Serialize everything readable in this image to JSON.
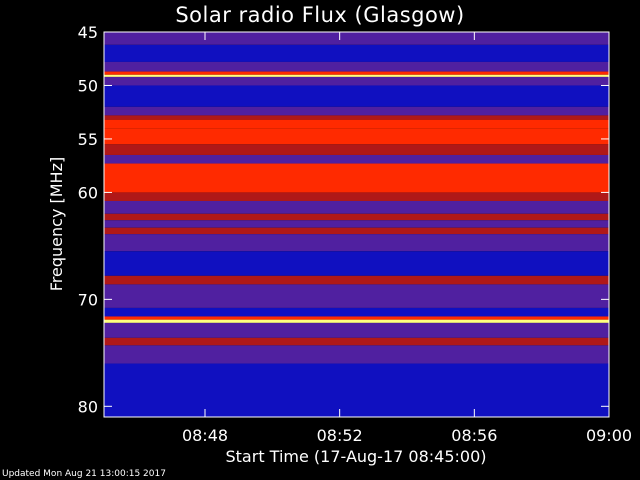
{
  "chart_data": {
    "type": "heatmap",
    "title": "Solar radio Flux (Glasgow)",
    "xlabel": "Start Time (17-Aug-17 08:45:00)",
    "ylabel": "Frequency [MHz]",
    "x_range": [
      "08:45",
      "09:00"
    ],
    "x_ticks": [
      "08:48",
      "08:52",
      "08:56",
      "09:00"
    ],
    "y_range": [
      45,
      81
    ],
    "y_ticks": [
      45,
      50,
      55,
      60,
      70,
      80
    ],
    "y_reversed": true,
    "colors": {
      "low": "#1010c0",
      "mid": "#5020a0",
      "warm": "#b01818",
      "hot": "#ff2a00",
      "peak": "#ffff80"
    },
    "bands": [
      {
        "from": 45.0,
        "to": 46.2,
        "level": "mid"
      },
      {
        "from": 46.2,
        "to": 47.8,
        "level": "low"
      },
      {
        "from": 47.8,
        "to": 48.7,
        "level": "mid"
      },
      {
        "from": 48.7,
        "to": 49.0,
        "level": "hot"
      },
      {
        "from": 49.0,
        "to": 49.2,
        "level": "peak"
      },
      {
        "from": 49.2,
        "to": 50.0,
        "level": "mid"
      },
      {
        "from": 50.0,
        "to": 52.0,
        "level": "low"
      },
      {
        "from": 52.0,
        "to": 52.8,
        "level": "mid"
      },
      {
        "from": 52.8,
        "to": 53.2,
        "level": "warm"
      },
      {
        "from": 53.2,
        "to": 54.0,
        "level": "hot"
      },
      {
        "from": 54.0,
        "to": 55.5,
        "level": "hot"
      },
      {
        "from": 55.5,
        "to": 56.5,
        "level": "warm"
      },
      {
        "from": 56.5,
        "to": 57.3,
        "level": "mid"
      },
      {
        "from": 57.3,
        "to": 60.0,
        "level": "hot"
      },
      {
        "from": 60.0,
        "to": 60.8,
        "level": "warm"
      },
      {
        "from": 60.8,
        "to": 62.0,
        "level": "mid"
      },
      {
        "from": 62.0,
        "to": 62.6,
        "level": "warm"
      },
      {
        "from": 62.6,
        "to": 63.3,
        "level": "mid"
      },
      {
        "from": 63.3,
        "to": 63.9,
        "level": "warm"
      },
      {
        "from": 63.9,
        "to": 65.5,
        "level": "mid"
      },
      {
        "from": 65.5,
        "to": 67.8,
        "level": "low"
      },
      {
        "from": 67.8,
        "to": 68.6,
        "level": "warm"
      },
      {
        "from": 68.6,
        "to": 70.8,
        "level": "mid"
      },
      {
        "from": 70.8,
        "to": 71.6,
        "level": "low"
      },
      {
        "from": 71.6,
        "to": 71.9,
        "level": "hot"
      },
      {
        "from": 71.9,
        "to": 72.2,
        "level": "peak"
      },
      {
        "from": 72.2,
        "to": 73.6,
        "level": "mid"
      },
      {
        "from": 73.6,
        "to": 74.3,
        "level": "warm"
      },
      {
        "from": 74.3,
        "to": 76.0,
        "level": "mid"
      },
      {
        "from": 76.0,
        "to": 81.0,
        "level": "low"
      }
    ]
  },
  "footer_text": "Updated Mon Aug 21 13:00:15 2017"
}
